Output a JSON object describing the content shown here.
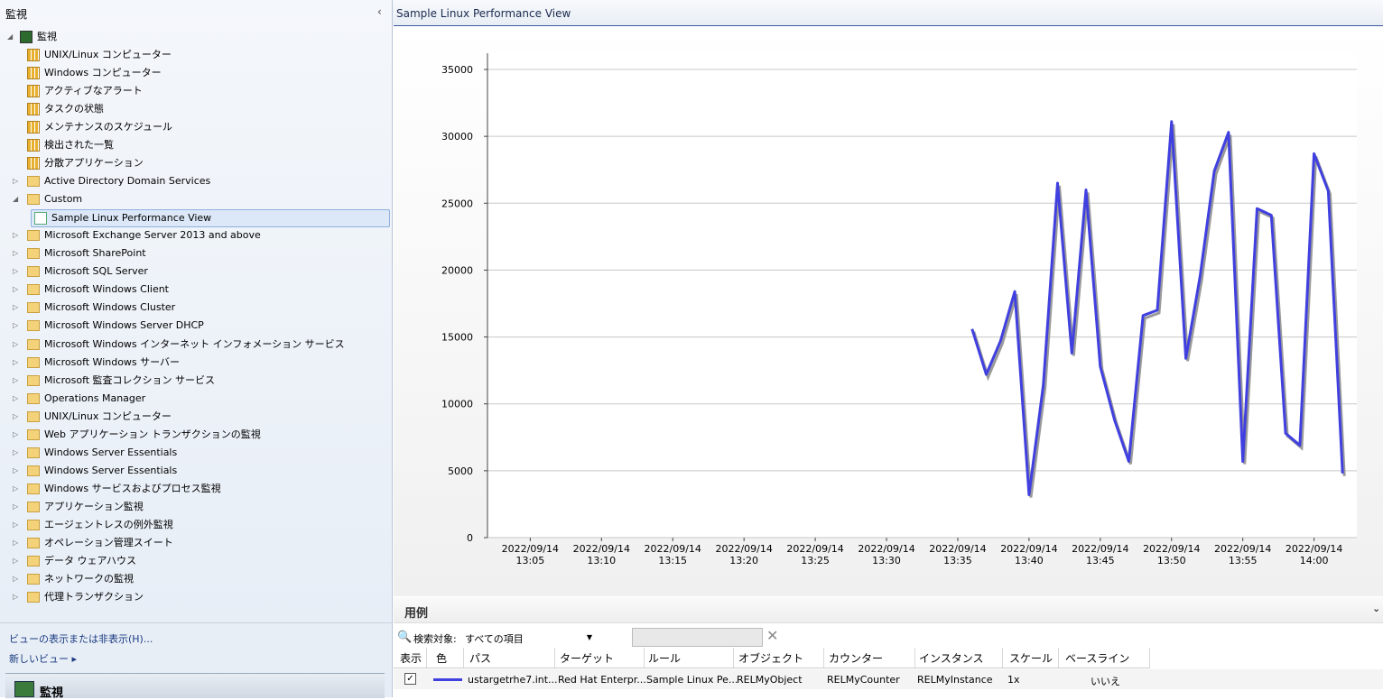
{
  "nav": {
    "header": "監視",
    "items": [
      "監視",
      "UNIX/Linux コンピューター",
      "Windows コンピューター",
      "アクティブなアラート",
      "タスクの状態",
      "メンテナンスのスケジュール",
      "検出された一覧",
      "分散アプリケーション",
      "Active Directory Domain Services",
      "Custom",
      "Sample Linux Performance View",
      "Microsoft Exchange Server 2013 and above",
      "Microsoft SharePoint",
      "Microsoft SQL Server",
      "Microsoft Windows Client",
      "Microsoft Windows Cluster",
      "Microsoft Windows Server DHCP",
      "Microsoft Windows インターネット インフォメーション サービス",
      "Microsoft Windows サーバー",
      "Microsoft 監査コレクション サービス",
      "Operations Manager",
      "UNIX/Linux コンピューター",
      "Web アプリケーション トランザクションの監視",
      "Windows Server Essentials",
      "Windows Server Essentials",
      "Windows サービスおよびプロセス監視",
      "アプリケーション監視",
      "エージェントレスの例外監視",
      "オペレーション管理スイート",
      "データ ウェアハウス",
      "ネットワークの監視",
      "代理トランザクション"
    ],
    "links": [
      "ビューの表示または非表示(H)...",
      "新しいビュー"
    ],
    "footer": "監視"
  },
  "view_title": "Sample Linux Performance View",
  "chart_data": {
    "type": "line",
    "x": [
      "2022/09/14 13:36",
      "2022/09/14 13:37",
      "2022/09/14 13:38",
      "2022/09/14 13:39",
      "2022/09/14 13:40",
      "2022/09/14 13:41",
      "2022/09/14 13:42",
      "2022/09/14 13:43",
      "2022/09/14 13:44",
      "2022/09/14 13:45",
      "2022/09/14 13:46",
      "2022/09/14 13:47",
      "2022/09/14 13:48",
      "2022/09/14 13:49",
      "2022/09/14 13:50",
      "2022/09/14 13:51",
      "2022/09/14 13:52",
      "2022/09/14 13:53",
      "2022/09/14 13:54",
      "2022/09/14 13:55",
      "2022/09/14 13:56",
      "2022/09/14 13:57",
      "2022/09/14 13:58",
      "2022/09/14 13:59",
      "2022/09/14 14:00",
      "2022/09/14 14:01",
      "2022/09/14 14:02"
    ],
    "series": [
      {
        "color": "#4040e0",
        "values": [
          15600,
          12200,
          14700,
          18400,
          3200,
          11400,
          26500,
          13800,
          26000,
          12800,
          8800,
          5700,
          16600,
          17000,
          31100,
          13400,
          19500,
          27400,
          30300,
          5700,
          24600,
          24100,
          7800,
          6900,
          28700,
          25900,
          4800
        ]
      }
    ],
    "xlim": [
      "2022/09/14 13:02",
      "2022/09/14 14:03"
    ],
    "xticks": [
      "2022/09/14 13:05",
      "2022/09/14 13:10",
      "2022/09/14 13:15",
      "2022/09/14 13:20",
      "2022/09/14 13:25",
      "2022/09/14 13:30",
      "2022/09/14 13:35",
      "2022/09/14 13:40",
      "2022/09/14 13:45",
      "2022/09/14 13:50",
      "2022/09/14 13:55",
      "2022/09/14 14:00"
    ],
    "ylim": [
      0,
      35000
    ],
    "yticks": [
      0,
      5000,
      10000,
      15000,
      20000,
      25000,
      30000,
      35000
    ],
    "grid": true
  },
  "legend": {
    "title": "用例",
    "search_label": "検索対象:",
    "search_scope": "すべての項目",
    "columns": [
      "表示",
      "色",
      "パス",
      "ターゲット",
      "ルール",
      "オブジェクト",
      "カウンター",
      "インスタンス",
      "スケール",
      "ベースライン"
    ],
    "row": [
      "ustargetrhe7.int...",
      "Red Hat Enterpr...",
      "Sample Linux Pe...",
      "RELMyObject",
      "RELMyCounter",
      "RELMyInstance",
      "1x",
      "いいえ"
    ]
  }
}
